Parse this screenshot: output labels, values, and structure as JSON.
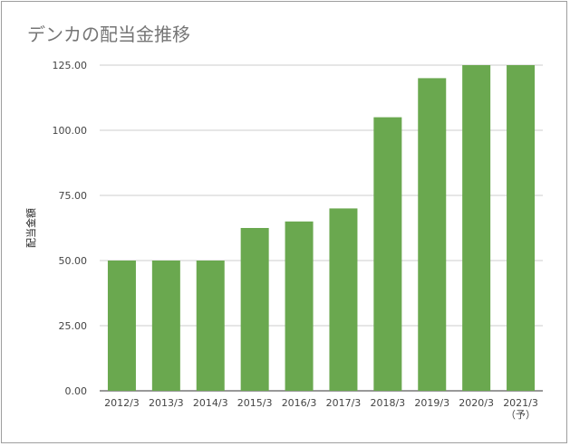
{
  "chart_data": {
    "type": "bar",
    "title": "デンカの配当金推移",
    "xlabel": "",
    "ylabel": "配当金額",
    "categories": [
      "2012/3",
      "2013/3",
      "2014/3",
      "2015/3",
      "2016/3",
      "2017/3",
      "2018/3",
      "2019/3",
      "2020/3",
      "2021/3"
    ],
    "category_sublabels": [
      "",
      "",
      "",
      "",
      "",
      "",
      "",
      "",
      "",
      "（予）"
    ],
    "values": [
      50,
      50,
      50,
      62.5,
      65,
      70,
      105,
      120,
      125,
      125
    ],
    "ylim": [
      0,
      125
    ],
    "yticks": [
      "0.00",
      "25.00",
      "50.00",
      "75.00",
      "100.00",
      "125.00"
    ],
    "ytick_values": [
      0,
      25,
      50,
      75,
      100,
      125
    ],
    "bar_color": "#6aa84f",
    "grid": true,
    "legend": "none"
  }
}
